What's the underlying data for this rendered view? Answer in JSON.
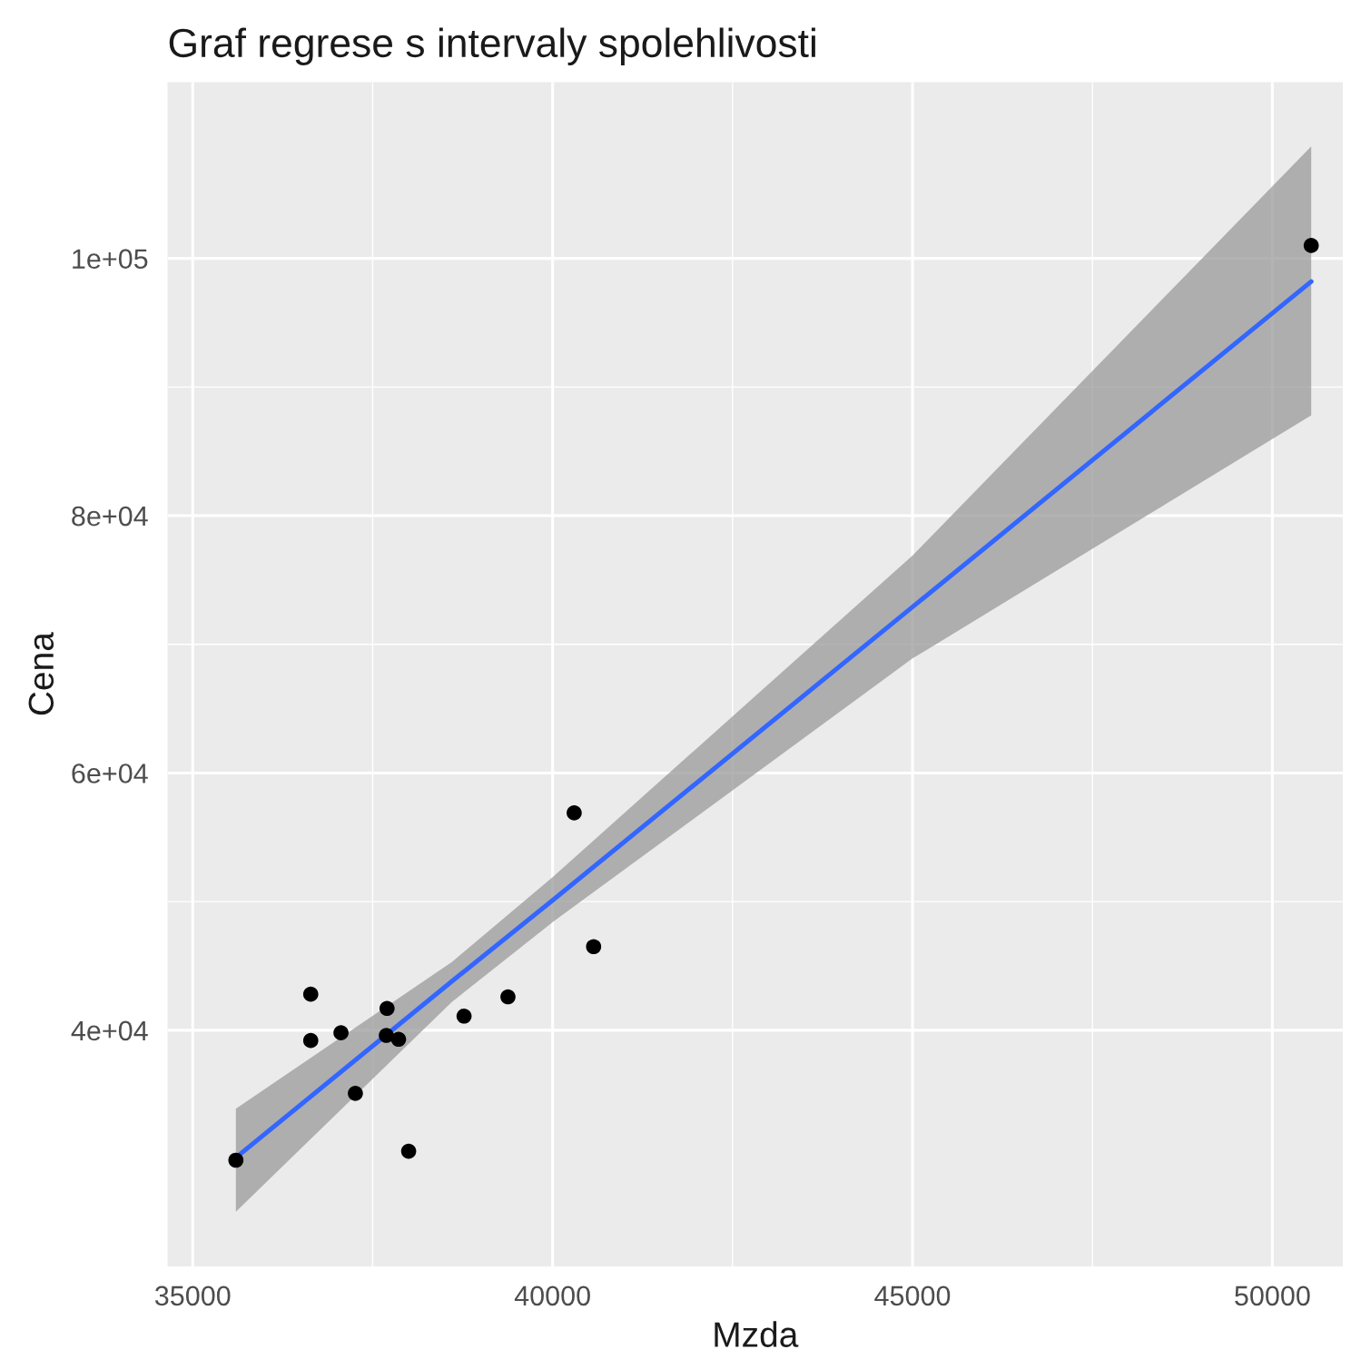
{
  "chart_data": {
    "type": "scatter",
    "title": "Graf regrese s intervaly spolehlivosti",
    "xlabel": "Mzda",
    "ylabel": "Cena",
    "xlim": [
      34650,
      50980
    ],
    "ylim": [
      21650,
      113700
    ],
    "xticks": [
      35000,
      40000,
      45000,
      50000
    ],
    "yticks": [
      {
        "value": 40000,
        "label": "4e+04"
      },
      {
        "value": 60000,
        "label": "6e+04"
      },
      {
        "value": 80000,
        "label": "8e+04"
      },
      {
        "value": 100000,
        "label": "1e+05"
      }
    ],
    "grid": true,
    "series": [
      {
        "color": "#000000",
        "marker": "circle",
        "x": [
          35600,
          36640,
          36640,
          37060,
          37260,
          37700,
          37690,
          37860,
          38000,
          38770,
          39380,
          40300,
          40570,
          50540
        ],
        "values": [
          29900,
          42800,
          39200,
          39800,
          35100,
          41700,
          39600,
          39300,
          30600,
          41100,
          42600,
          56900,
          46500,
          101000
        ]
      },
      {
        "type": "line",
        "color": "#3366ff",
        "line_style": "solid",
        "x": [
          35600,
          38600,
          40000,
          45000,
          50540
        ],
        "values": [
          30100,
          43800,
          50100,
          72900,
          98200
        ],
        "lower": [
          25900,
          42200,
          48400,
          68900,
          87800
        ],
        "upper": [
          33900,
          45300,
          51900,
          76900,
          108700
        ]
      }
    ]
  }
}
